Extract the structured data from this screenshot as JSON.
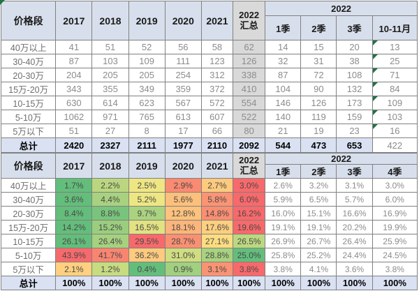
{
  "chart_data": [
    {
      "type": "table",
      "title": "分价格段销量汇总表",
      "corner_header": "价格段",
      "year_headers": [
        "2017",
        "2018",
        "2019",
        "2020",
        "2021"
      ],
      "summary_header_lines": [
        "2022",
        "汇总"
      ],
      "group_header": "2022",
      "sub_headers": [
        "1季",
        "2季",
        "3季",
        "10-11月"
      ],
      "row_labels": [
        "40万以上",
        "30-40万",
        "20-30万",
        "15万-20万",
        "10-15万",
        "5-10万",
        "5万以下"
      ],
      "rows": [
        [
          41,
          51,
          52,
          56,
          58,
          62,
          14,
          15,
          20,
          13
        ],
        [
          87,
          103,
          109,
          111,
          123,
          126,
          32,
          31,
          38,
          25
        ],
        [
          204,
          205,
          205,
          254,
          312,
          338,
          87,
          72,
          108,
          71
        ],
        [
          343,
          355,
          349,
          359,
          372,
          410,
          104,
          90,
          132,
          84
        ],
        [
          630,
          614,
          623,
          567,
          572,
          554,
          146,
          126,
          173,
          109
        ],
        [
          1062,
          971,
          765,
          613,
          607,
          522,
          140,
          119,
          159,
          103
        ],
        [
          51,
          27,
          8,
          17,
          66,
          80,
          21,
          19,
          23,
          16
        ]
      ],
      "total_label": "总计",
      "total_row": [
        2420,
        2327,
        2111,
        1977,
        2110,
        2092,
        544,
        473,
        653,
        422
      ],
      "flagged_last_column": true
    },
    {
      "type": "heatmap",
      "title": "分价格段销量占比表",
      "corner_header": "价格段",
      "year_headers": [
        "2017",
        "2018",
        "2019",
        "2020",
        "2021"
      ],
      "summary_header_lines": [
        "2022",
        "汇总"
      ],
      "group_header": "2022",
      "sub_headers": [
        "1季",
        "2季",
        "3季",
        "4季"
      ],
      "row_labels": [
        "40万以上",
        "30-40万",
        "20-30万",
        "15万-20万",
        "10-15万",
        "5-10万",
        "5万以下"
      ],
      "rows": [
        [
          "1.7%",
          "2.2%",
          "2.5%",
          "2.9%",
          "2.7%",
          "3.0%",
          "2.6%",
          "3.2%",
          "3.1%",
          "3.0%"
        ],
        [
          "3.6%",
          "4.4%",
          "5.2%",
          "5.6%",
          "5.8%",
          "6.0%",
          "5.9%",
          "6.5%",
          "5.7%",
          "6.0%"
        ],
        [
          "8.4%",
          "8.8%",
          "9.7%",
          "12.8%",
          "14.8%",
          "16.2%",
          "16.0%",
          "15.1%",
          "16.6%",
          "16.9%"
        ],
        [
          "14.2%",
          "15.2%",
          "16.5%",
          "18.1%",
          "17.6%",
          "19.6%",
          "19.1%",
          "19.1%",
          "20.2%",
          "19.9%"
        ],
        [
          "26.1%",
          "26.4%",
          "29.5%",
          "28.7%",
          "27.1%",
          "26.5%",
          "26.9%",
          "26.7%",
          "26.4%",
          "25.9%"
        ],
        [
          "43.9%",
          "41.7%",
          "36.2%",
          "31.0%",
          "28.8%",
          "25.0%",
          "25.8%",
          "25.2%",
          "24.4%",
          "24.5%"
        ],
        [
          "2.1%",
          "1.2%",
          "0.4%",
          "0.9%",
          "3.1%",
          "3.8%",
          "3.8%",
          "4.1%",
          "3.6%",
          "3.8%"
        ]
      ],
      "total_label": "总计",
      "total_row": [
        "100%",
        "100%",
        "100%",
        "100%",
        "100%",
        "100%",
        "100%",
        "100%",
        "100%",
        "100%"
      ],
      "heatmap_columns": 6,
      "flagged_last_column": false
    }
  ],
  "colors": {
    "header_bg": "#D8DFEC",
    "total_row_bg": "#D9E1F2",
    "summary_col_bg": "#D9D9D9",
    "heatmap_green": "#63BE7B",
    "heatmap_yellow": "#FFEB84",
    "heatmap_red": "#F8696B",
    "flag_green": "#217346",
    "grid_border": "#808080",
    "value_text": "#8C8C8C",
    "label_text": "#6E6E6E",
    "header_text": "#1A1A1A",
    "heatmap_text": "#4A4A4A"
  }
}
